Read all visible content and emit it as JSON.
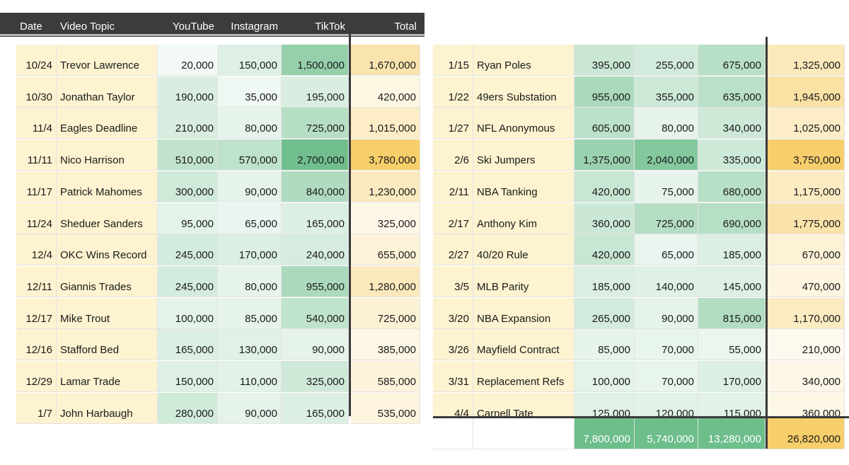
{
  "headers": {
    "date": "Date",
    "topic": "Video Topic",
    "youtube": "YouTube",
    "instagram": "Instagram",
    "tiktok": "TikTok",
    "total": "Total"
  },
  "left_rows": [
    {
      "date": "10/24",
      "topic": "Trevor Lawrence",
      "youtube": "20,000",
      "instagram": "150,000",
      "tiktok": "1,500,000",
      "total": "1,670,000"
    },
    {
      "date": "10/30",
      "topic": "Jonathan Taylor",
      "youtube": "190,000",
      "instagram": "35,000",
      "tiktok": "195,000",
      "total": "420,000"
    },
    {
      "date": "11/4",
      "topic": "Eagles Deadline",
      "youtube": "210,000",
      "instagram": "80,000",
      "tiktok": "725,000",
      "total": "1,015,000"
    },
    {
      "date": "11/11",
      "topic": "Nico Harrison",
      "youtube": "510,000",
      "instagram": "570,000",
      "tiktok": "2,700,000",
      "total": "3,780,000"
    },
    {
      "date": "11/17",
      "topic": "Patrick Mahomes",
      "youtube": "300,000",
      "instagram": "90,000",
      "tiktok": "840,000",
      "total": "1,230,000"
    },
    {
      "date": "11/24",
      "topic": "Sheduer Sanders",
      "youtube": "95,000",
      "instagram": "65,000",
      "tiktok": "165,000",
      "total": "325,000"
    },
    {
      "date": "12/4",
      "topic": "OKC Wins Record",
      "youtube": "245,000",
      "instagram": "170,000",
      "tiktok": "240,000",
      "total": "655,000"
    },
    {
      "date": "12/11",
      "topic": "Giannis Trades",
      "youtube": "245,000",
      "instagram": "80,000",
      "tiktok": "955,000",
      "total": "1,280,000"
    },
    {
      "date": "12/17",
      "topic": "Mike Trout",
      "youtube": "100,000",
      "instagram": "85,000",
      "tiktok": "540,000",
      "total": "725,000"
    },
    {
      "date": "12/16",
      "topic": "Stafford Bed",
      "youtube": "165,000",
      "instagram": "130,000",
      "tiktok": "90,000",
      "total": "385,000"
    },
    {
      "date": "12/29",
      "topic": "Lamar Trade",
      "youtube": "150,000",
      "instagram": "110,000",
      "tiktok": "325,000",
      "total": "585,000"
    },
    {
      "date": "1/7",
      "topic": "John Harbaugh",
      "youtube": "280,000",
      "instagram": "90,000",
      "tiktok": "165,000",
      "total": "535,000"
    }
  ],
  "right_rows": [
    {
      "date": "1/15",
      "topic": "Ryan Poles",
      "youtube": "395,000",
      "instagram": "255,000",
      "tiktok": "675,000",
      "total": "1,325,000"
    },
    {
      "date": "1/22",
      "topic": "49ers Substation",
      "youtube": "955,000",
      "instagram": "355,000",
      "tiktok": "635,000",
      "total": "1,945,000"
    },
    {
      "date": "1/27",
      "topic": "NFL Anonymous",
      "youtube": "605,000",
      "instagram": "80,000",
      "tiktok": "340,000",
      "total": "1,025,000"
    },
    {
      "date": "2/6",
      "topic": "Ski Jumpers",
      "youtube": "1,375,000",
      "instagram": "2,040,000",
      "tiktok": "335,000",
      "total": "3,750,000"
    },
    {
      "date": "2/11",
      "topic": "NBA Tanking",
      "youtube": "420,000",
      "instagram": "75,000",
      "tiktok": "680,000",
      "total": "1,175,000"
    },
    {
      "date": "2/17",
      "topic": "Anthony Kim",
      "youtube": "360,000",
      "instagram": "725,000",
      "tiktok": "690,000",
      "total": "1,775,000"
    },
    {
      "date": "2/27",
      "topic": "40/20 Rule",
      "youtube": "420,000",
      "instagram": "65,000",
      "tiktok": "185,000",
      "total": "670,000"
    },
    {
      "date": "3/5",
      "topic": "MLB Parity",
      "youtube": "185,000",
      "instagram": "140,000",
      "tiktok": "145,000",
      "total": "470,000"
    },
    {
      "date": "3/20",
      "topic": "NBA Expansion",
      "youtube": "265,000",
      "instagram": "90,000",
      "tiktok": "815,000",
      "total": "1,170,000"
    },
    {
      "date": "3/26",
      "topic": "Mayfield Contract",
      "youtube": "85,000",
      "instagram": "70,000",
      "tiktok": "55,000",
      "total": "210,000"
    },
    {
      "date": "3/31",
      "topic": "Replacement Refs",
      "youtube": "100,000",
      "instagram": "70,000",
      "tiktok": "170,000",
      "total": "340,000"
    },
    {
      "date": "4/4",
      "topic": "Carnell Tate",
      "youtube": "125,000",
      "instagram": "120,000",
      "tiktok": "115,000",
      "total": "360,000"
    }
  ],
  "totals": {
    "youtube": "7,800,000",
    "instagram": "5,740,000",
    "tiktok": "13,280,000",
    "total": "26,820,000"
  },
  "colors": {
    "header_bg": "#3c3c3c",
    "label_bg": "#fdf3d0",
    "green_scale_high": "#6abc89",
    "total_scale_high": "#f6ce6a",
    "white": "#ffffff"
  }
}
